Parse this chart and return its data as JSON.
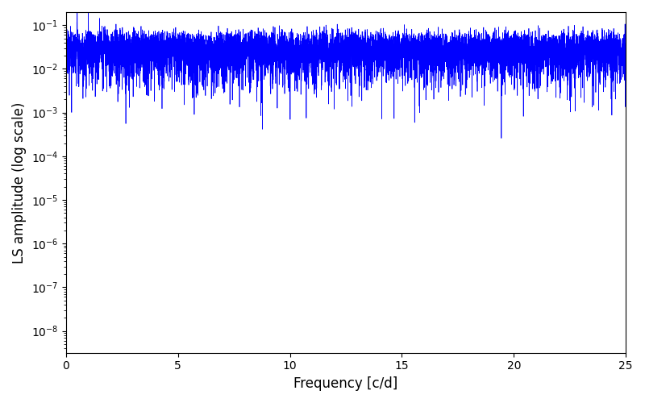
{
  "line_color": "#0000ff",
  "xlabel": "Frequency [c/d]",
  "ylabel": "LS amplitude (log scale)",
  "xlim": [
    0,
    25
  ],
  "ylim_log": [
    -8.5,
    -0.7
  ],
  "xticks": [
    0,
    5,
    10,
    15,
    20,
    25
  ],
  "xticklabels": [
    "0",
    "5",
    "10",
    "15",
    "20",
    "25"
  ],
  "figsize": [
    8.0,
    5.0
  ],
  "dpi": 100,
  "background_color": "#ffffff",
  "linewidth": 0.5,
  "n_points": 15000,
  "freq_max": 25.0,
  "seed": 17
}
